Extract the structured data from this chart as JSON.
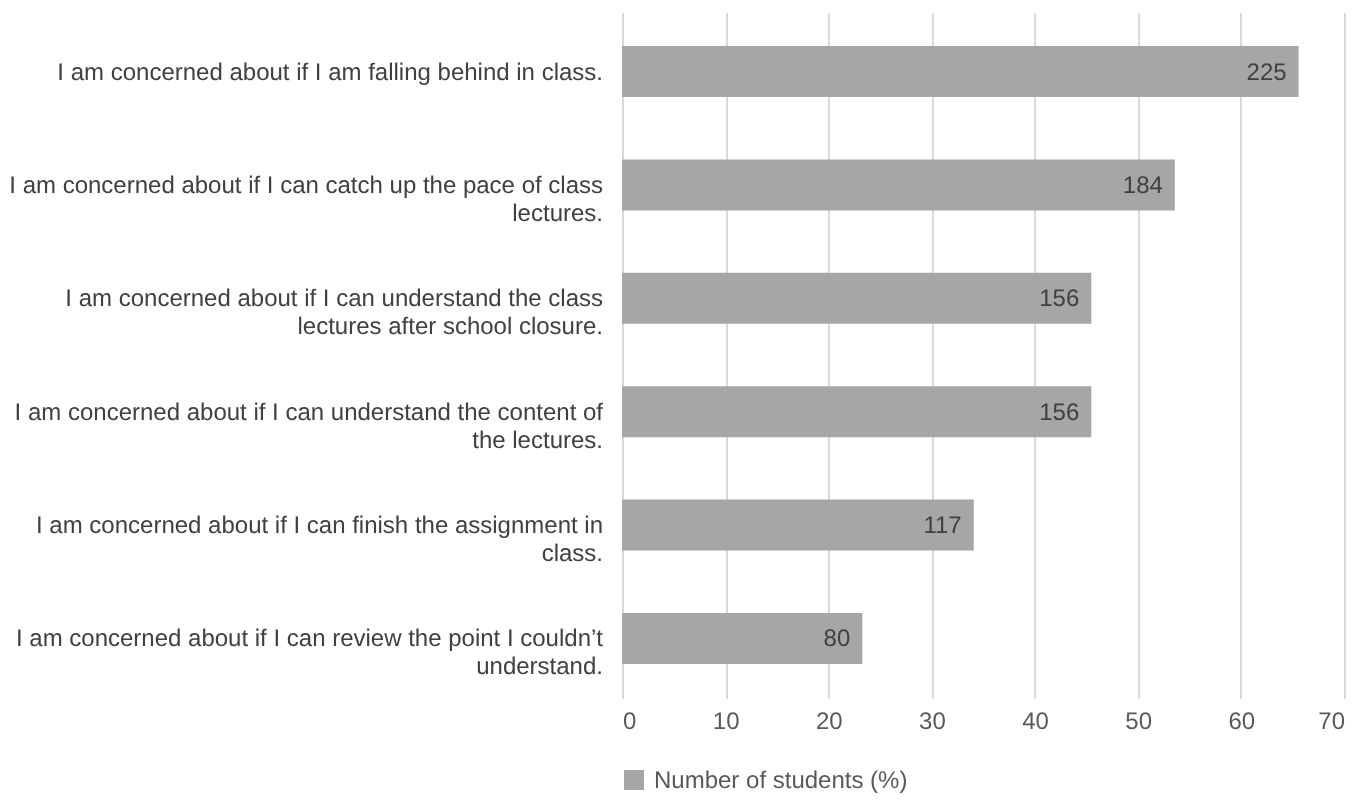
{
  "chart_data": {
    "type": "bar",
    "orientation": "horizontal",
    "categories": [
      "I am concerned about if I am falling behind in class.",
      "I am concerned about if I can catch up the pace of class lectures.",
      "I am concerned about if I can understand the class lectures after school closure.",
      "I am concerned about if I can understand the content of the lectures.",
      "I am concerned about if I can finish the assignment in class.",
      "I am concerned about if I can review the point I couldn’t understand."
    ],
    "series": [
      {
        "name": "Number of students (%)",
        "color": "#a6a6a6",
        "values": [
          65.6,
          53.6,
          45.5,
          45.5,
          34.1,
          23.3
        ]
      }
    ],
    "annotations": [
      {
        "text": "225",
        "x": 65.6,
        "y": "I am concerned about if I am falling behind in class."
      },
      {
        "text": "184",
        "x": 53.6,
        "y": "I am concerned about if I can catch up the pace of class lectures."
      },
      {
        "text": "156",
        "x": 45.5,
        "y": "I am concerned about if I can understand the class lectures after school closure."
      },
      {
        "text": "156",
        "x": 45.5,
        "y": "I am concerned about if I can understand the content of the lectures."
      },
      {
        "text": "117",
        "x": 34.1,
        "y": "I am concerned about if I can finish the assignment in class."
      },
      {
        "text": "80",
        "x": 23.3,
        "y": "I am concerned about if I can review the point I couldn’t understand."
      }
    ],
    "xlim": [
      0,
      70
    ],
    "xticks": [
      0,
      10,
      20,
      30,
      40,
      50,
      60,
      70
    ],
    "grid": "x",
    "legend": "bottom"
  }
}
